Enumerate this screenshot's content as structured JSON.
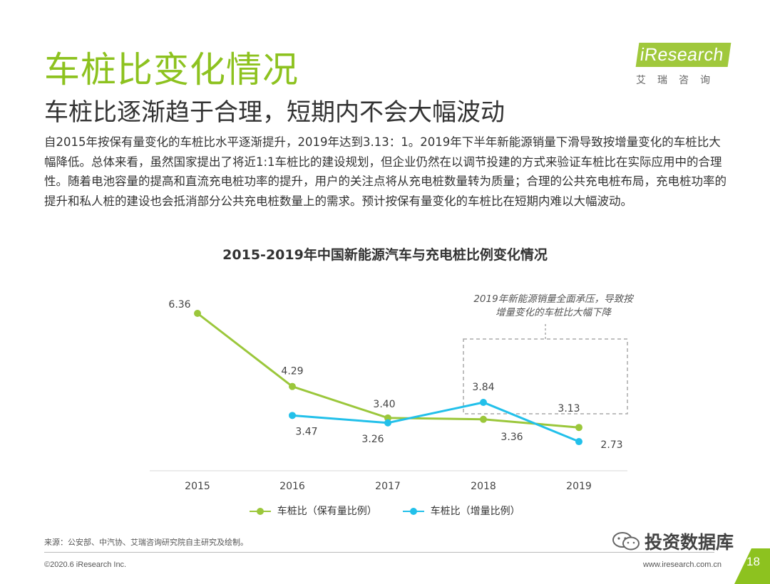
{
  "header": {
    "title": "车桩比变化情况",
    "subtitle": "车桩比逐渐趋于合理，短期内不会大幅波动",
    "logo_text": "iResearch",
    "logo_sub": "艾瑞咨询"
  },
  "intro": "自2015年按保有量变化的车桩比水平逐渐提升，2019年达到3.13：1。2019年下半年新能源销量下滑导致按增量变化的车桩比大幅降低。总体来看，虽然国家提出了将近1:1车桩比的建设规划，但企业仍然在以调节投建的方式来验证车桩比在实际应用中的合理性。随着电池容量的提高和直流充电桩功率的提升，用户的关注点将从充电桩数量转为质量；合理的公共充电桩布局，充电桩功率的提升和私人桩的建设也会抵消部分公共充电桩数量上的需求。预计按保有量变化的车桩比在短期内难以大幅波动。",
  "colors": {
    "green": "#9bc73b",
    "blue": "#22c0ea",
    "title_green": "#8dc21f"
  },
  "chart_data": {
    "type": "line",
    "title": "2015-2019年中国新能源汽车与充电桩比例变化情况",
    "categories": [
      "2015",
      "2016",
      "2017",
      "2018",
      "2019"
    ],
    "series": [
      {
        "name": "车桩比（保有量比例）",
        "color": "#9bc73b",
        "values": [
          6.36,
          4.29,
          3.4,
          3.36,
          3.13
        ],
        "labels": [
          "6.36",
          "4.29",
          "3.40",
          "3.36",
          "3.13"
        ]
      },
      {
        "name": "车桩比（增量比例）",
        "color": "#22c0ea",
        "values": [
          null,
          3.47,
          3.26,
          3.84,
          2.73
        ],
        "labels": [
          null,
          "3.47",
          "3.26",
          "3.84",
          "2.73"
        ]
      }
    ],
    "annotation": "2019年新能源销量全面承压，导致按增量变化的车桩比大幅下降",
    "xlabel": "",
    "ylabel": "",
    "ylim": [
      2.0,
      7.0
    ],
    "grid": false,
    "legend": "bottom"
  },
  "footer": {
    "source": "来源：公安部、中汽协、艾瑞咨询研究院自主研究及绘制。",
    "copyright": "©2020.6 iResearch Inc.",
    "site": "www.iresearch.com.cn",
    "page": "18",
    "watermark": "投资数据库"
  }
}
